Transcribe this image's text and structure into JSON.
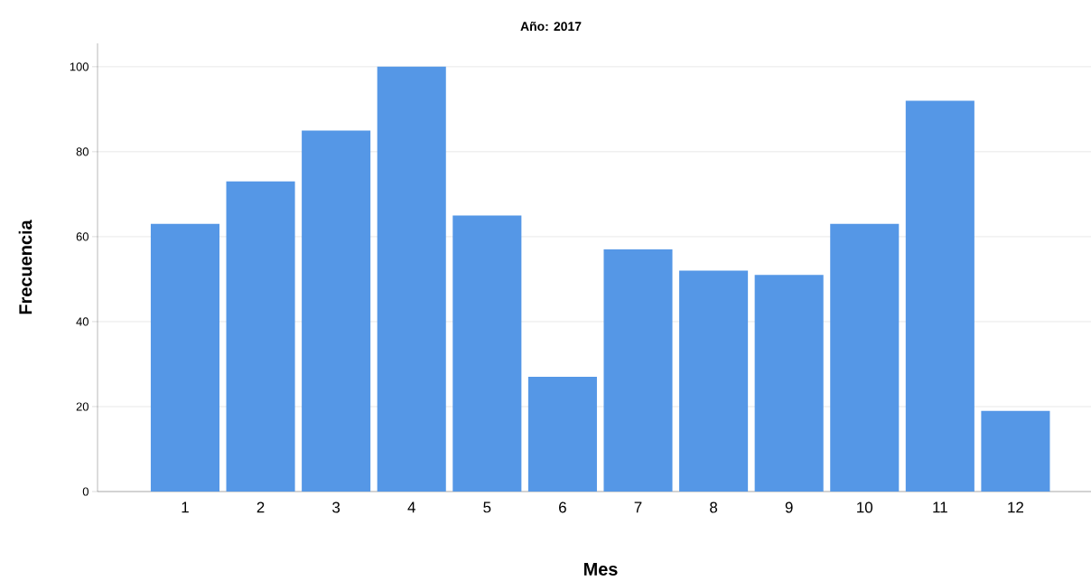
{
  "chart_data": {
    "type": "bar",
    "title": "Año: 2017",
    "xlabel": "Mes",
    "ylabel": "Frecuencia",
    "categories": [
      "1",
      "2",
      "3",
      "4",
      "5",
      "6",
      "7",
      "8",
      "9",
      "10",
      "11",
      "12"
    ],
    "values": [
      63,
      73,
      85,
      100,
      65,
      27,
      57,
      52,
      51,
      63,
      92,
      19
    ],
    "color": "#5597e6",
    "ylim": [
      0,
      105.5
    ],
    "yticks": [
      0,
      20,
      40,
      60,
      80,
      100
    ],
    "grid": "y"
  }
}
